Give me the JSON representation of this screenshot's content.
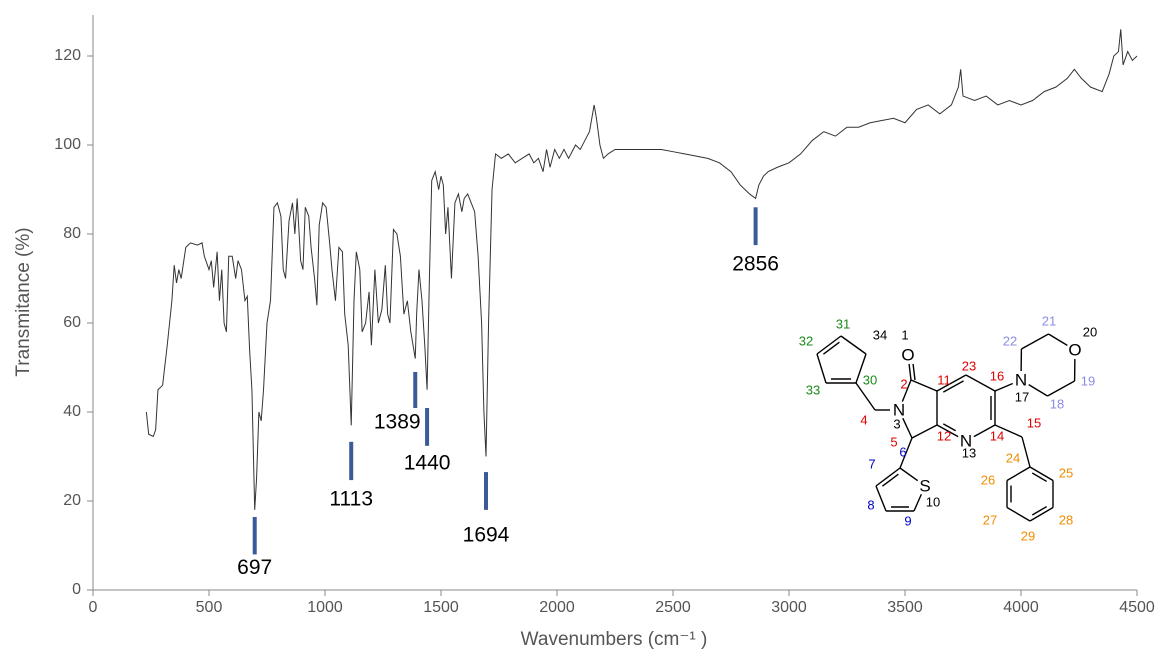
{
  "chart_data": {
    "type": "line",
    "x_label": "Wavenumbers (cm⁻¹ )",
    "y_label": "Transmitance (%)",
    "color": "#333333",
    "xlim": [
      0,
      4500
    ],
    "xticks": [
      0,
      500,
      1000,
      1500,
      2000,
      2500,
      3000,
      3500,
      4000,
      4500
    ],
    "ylim": [
      0,
      120
    ],
    "yticks": [
      0,
      20,
      40,
      60,
      80,
      100,
      120
    ],
    "x": [
      230,
      240,
      260,
      270,
      280,
      300,
      320,
      340,
      350,
      360,
      370,
      380,
      400,
      420,
      450,
      470,
      480,
      500,
      510,
      520,
      535,
      545,
      555,
      565,
      575,
      585,
      600,
      615,
      625,
      640,
      655,
      665,
      675,
      685,
      697,
      705,
      715,
      725,
      735,
      750,
      765,
      780,
      795,
      810,
      820,
      830,
      845,
      860,
      870,
      880,
      895,
      905,
      915,
      930,
      940,
      955,
      965,
      975,
      990,
      1005,
      1020,
      1030,
      1045,
      1060,
      1075,
      1085,
      1100,
      1113,
      1125,
      1135,
      1150,
      1160,
      1175,
      1190,
      1200,
      1215,
      1230,
      1245,
      1260,
      1270,
      1280,
      1295,
      1310,
      1325,
      1340,
      1355,
      1370,
      1389,
      1395,
      1405,
      1418,
      1430,
      1440,
      1450,
      1460,
      1475,
      1490,
      1500,
      1510,
      1520,
      1530,
      1545,
      1560,
      1575,
      1590,
      1600,
      1615,
      1630,
      1645,
      1660,
      1675,
      1685,
      1694,
      1705,
      1720,
      1735,
      1760,
      1790,
      1820,
      1850,
      1880,
      1900,
      1920,
      1940,
      1955,
      1970,
      1990,
      2010,
      2030,
      2050,
      2080,
      2100,
      2120,
      2140,
      2160,
      2170,
      2185,
      2200,
      2220,
      2250,
      2300,
      2350,
      2400,
      2450,
      2500,
      2550,
      2600,
      2650,
      2700,
      2750,
      2790,
      2810,
      2830,
      2856,
      2870,
      2890,
      2910,
      2950,
      3000,
      3050,
      3100,
      3150,
      3200,
      3250,
      3300,
      3350,
      3400,
      3450,
      3500,
      3550,
      3600,
      3650,
      3700,
      3730,
      3740,
      3750,
      3800,
      3850,
      3900,
      3950,
      4000,
      4050,
      4100,
      4150,
      4200,
      4230,
      4260,
      4300,
      4350,
      4380,
      4400,
      4420,
      4430,
      4440,
      4460,
      4480,
      4500
    ],
    "values": [
      40,
      35,
      34.5,
      36,
      45,
      46,
      55,
      65,
      73,
      69,
      72,
      70,
      77,
      78,
      77.5,
      78,
      75,
      72,
      74,
      68,
      76,
      65,
      72,
      60,
      58,
      75,
      75,
      70,
      74,
      72,
      65,
      66,
      54,
      45,
      18,
      25,
      40,
      38,
      45,
      60,
      65,
      86,
      87,
      84,
      72,
      70,
      83,
      87,
      80,
      88,
      74,
      72,
      86,
      84,
      77,
      70,
      64,
      82,
      87,
      86,
      78,
      72,
      65,
      77,
      76,
      62,
      55,
      37,
      65,
      76,
      72,
      58,
      60,
      67,
      55,
      72,
      60,
      63,
      73,
      62,
      60,
      81,
      80,
      75,
      62,
      65,
      58,
      52,
      62,
      72,
      65,
      55,
      45,
      70,
      92,
      94,
      90,
      93,
      91,
      80,
      86,
      70,
      87,
      89,
      85,
      88,
      89,
      87,
      85,
      75,
      60,
      40,
      30,
      60,
      90,
      98,
      97,
      98,
      96,
      97,
      98,
      96,
      97,
      94,
      99,
      95,
      99,
      97,
      99,
      97,
      100,
      99,
      101,
      103,
      109,
      106,
      100,
      97,
      98,
      99,
      99,
      99,
      99,
      99,
      98.5,
      98,
      97.5,
      97,
      96,
      94,
      91,
      90,
      89,
      88,
      91,
      93,
      94,
      95,
      96,
      98,
      101,
      103,
      102,
      104,
      104,
      105,
      105.5,
      106,
      105,
      108,
      109,
      107,
      109,
      113,
      117,
      111,
      110,
      111,
      109,
      110,
      109,
      110,
      112,
      113,
      115,
      117,
      115,
      113,
      112,
      116,
      120,
      121,
      126,
      118,
      121,
      119,
      120
    ],
    "annotations": [
      {
        "x": 697,
        "range": [
          8,
          16.4
        ],
        "color": "#3a5a98"
      },
      {
        "x": 1113,
        "range": [
          24.7,
          33.3
        ],
        "color": "#3a5a98"
      },
      {
        "x": 1389,
        "range": [
          40.9,
          49
        ],
        "color": "#3a5a98"
      },
      {
        "x": 1440,
        "range": [
          32.4,
          40.9
        ],
        "color": "#3a5a98"
      },
      {
        "x": 1694,
        "range": [
          18,
          26.5
        ],
        "color": "#3a5a98"
      },
      {
        "x": 2856,
        "range": [
          77.5,
          86
        ],
        "color": "#3a5a98"
      }
    ]
  },
  "structure": {
    "atoms": [
      {
        "number": "1",
        "symbol": "O",
        "color": "#000000"
      },
      {
        "number": "2",
        "color": "#e00000"
      },
      {
        "number": "3",
        "symbol": "N",
        "color": "#000000"
      },
      {
        "number": "4",
        "color": "#e00000"
      },
      {
        "number": "5",
        "color": "#e00000"
      },
      {
        "number": "6",
        "color": "#0000c8"
      },
      {
        "number": "7",
        "color": "#0000c8"
      },
      {
        "number": "8",
        "color": "#0000c8"
      },
      {
        "number": "9",
        "color": "#0000c8"
      },
      {
        "number": "10",
        "symbol": "S",
        "color": "#000000"
      },
      {
        "number": "11",
        "color": "#e00000"
      },
      {
        "number": "12",
        "color": "#e00000"
      },
      {
        "number": "13",
        "symbol": "N",
        "color": "#000000"
      },
      {
        "number": "14",
        "color": "#e00000"
      },
      {
        "number": "15",
        "color": "#e00000"
      },
      {
        "number": "16",
        "color": "#e00000"
      },
      {
        "number": "17",
        "symbol": "N",
        "color": "#000000"
      },
      {
        "number": "18",
        "color": "#8c8ce6"
      },
      {
        "number": "19",
        "color": "#8c8ce6"
      },
      {
        "number": "20",
        "symbol": "O",
        "color": "#000000"
      },
      {
        "number": "21",
        "color": "#8c8ce6"
      },
      {
        "number": "22",
        "color": "#8c8ce6"
      },
      {
        "number": "23",
        "color": "#e00000"
      },
      {
        "number": "24",
        "color": "#f08c00"
      },
      {
        "number": "25",
        "color": "#f08c00"
      },
      {
        "number": "26",
        "color": "#f08c00"
      },
      {
        "number": "27",
        "color": "#f08c00"
      },
      {
        "number": "28",
        "color": "#f08c00"
      },
      {
        "number": "29",
        "color": "#f08c00"
      },
      {
        "number": "30",
        "color": "#1a8a1a"
      },
      {
        "number": "31",
        "color": "#1a8a1a"
      },
      {
        "number": "32",
        "color": "#1a8a1a"
      },
      {
        "number": "33",
        "color": "#1a8a1a"
      },
      {
        "number": "34",
        "color": "#000000"
      }
    ]
  }
}
